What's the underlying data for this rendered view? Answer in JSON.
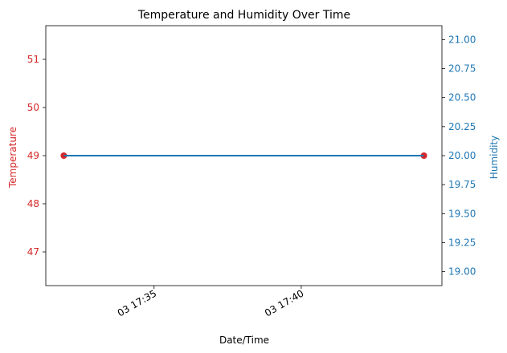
{
  "chart_data": {
    "type": "line",
    "title": "Temperature and Humidity Over Time",
    "xlabel": "Date/Time",
    "x": [
      "03 17:31:56",
      "03 17:44:10"
    ],
    "x_ticks": [
      "03 17:35",
      "03 17:40"
    ],
    "left_axis": {
      "label": "Temperature",
      "color": "#d62728",
      "ylim": [
        46.3,
        51.7
      ],
      "ticks": [
        "47",
        "48",
        "49",
        "50",
        "51"
      ]
    },
    "right_axis": {
      "label": "Humidity",
      "color": "#1f77b4",
      "ylim": [
        18.88,
        21.12
      ],
      "ticks": [
        "19.00",
        "19.25",
        "19.50",
        "19.75",
        "20.00",
        "20.25",
        "20.50",
        "20.75",
        "21.00"
      ]
    },
    "series": [
      {
        "axis": "left",
        "color": "#d62728",
        "marker": "circle",
        "values": [
          49,
          49
        ]
      },
      {
        "axis": "right",
        "color": "#1f77b4",
        "marker": "none",
        "values": [
          20,
          20
        ]
      }
    ],
    "grid": false
  }
}
